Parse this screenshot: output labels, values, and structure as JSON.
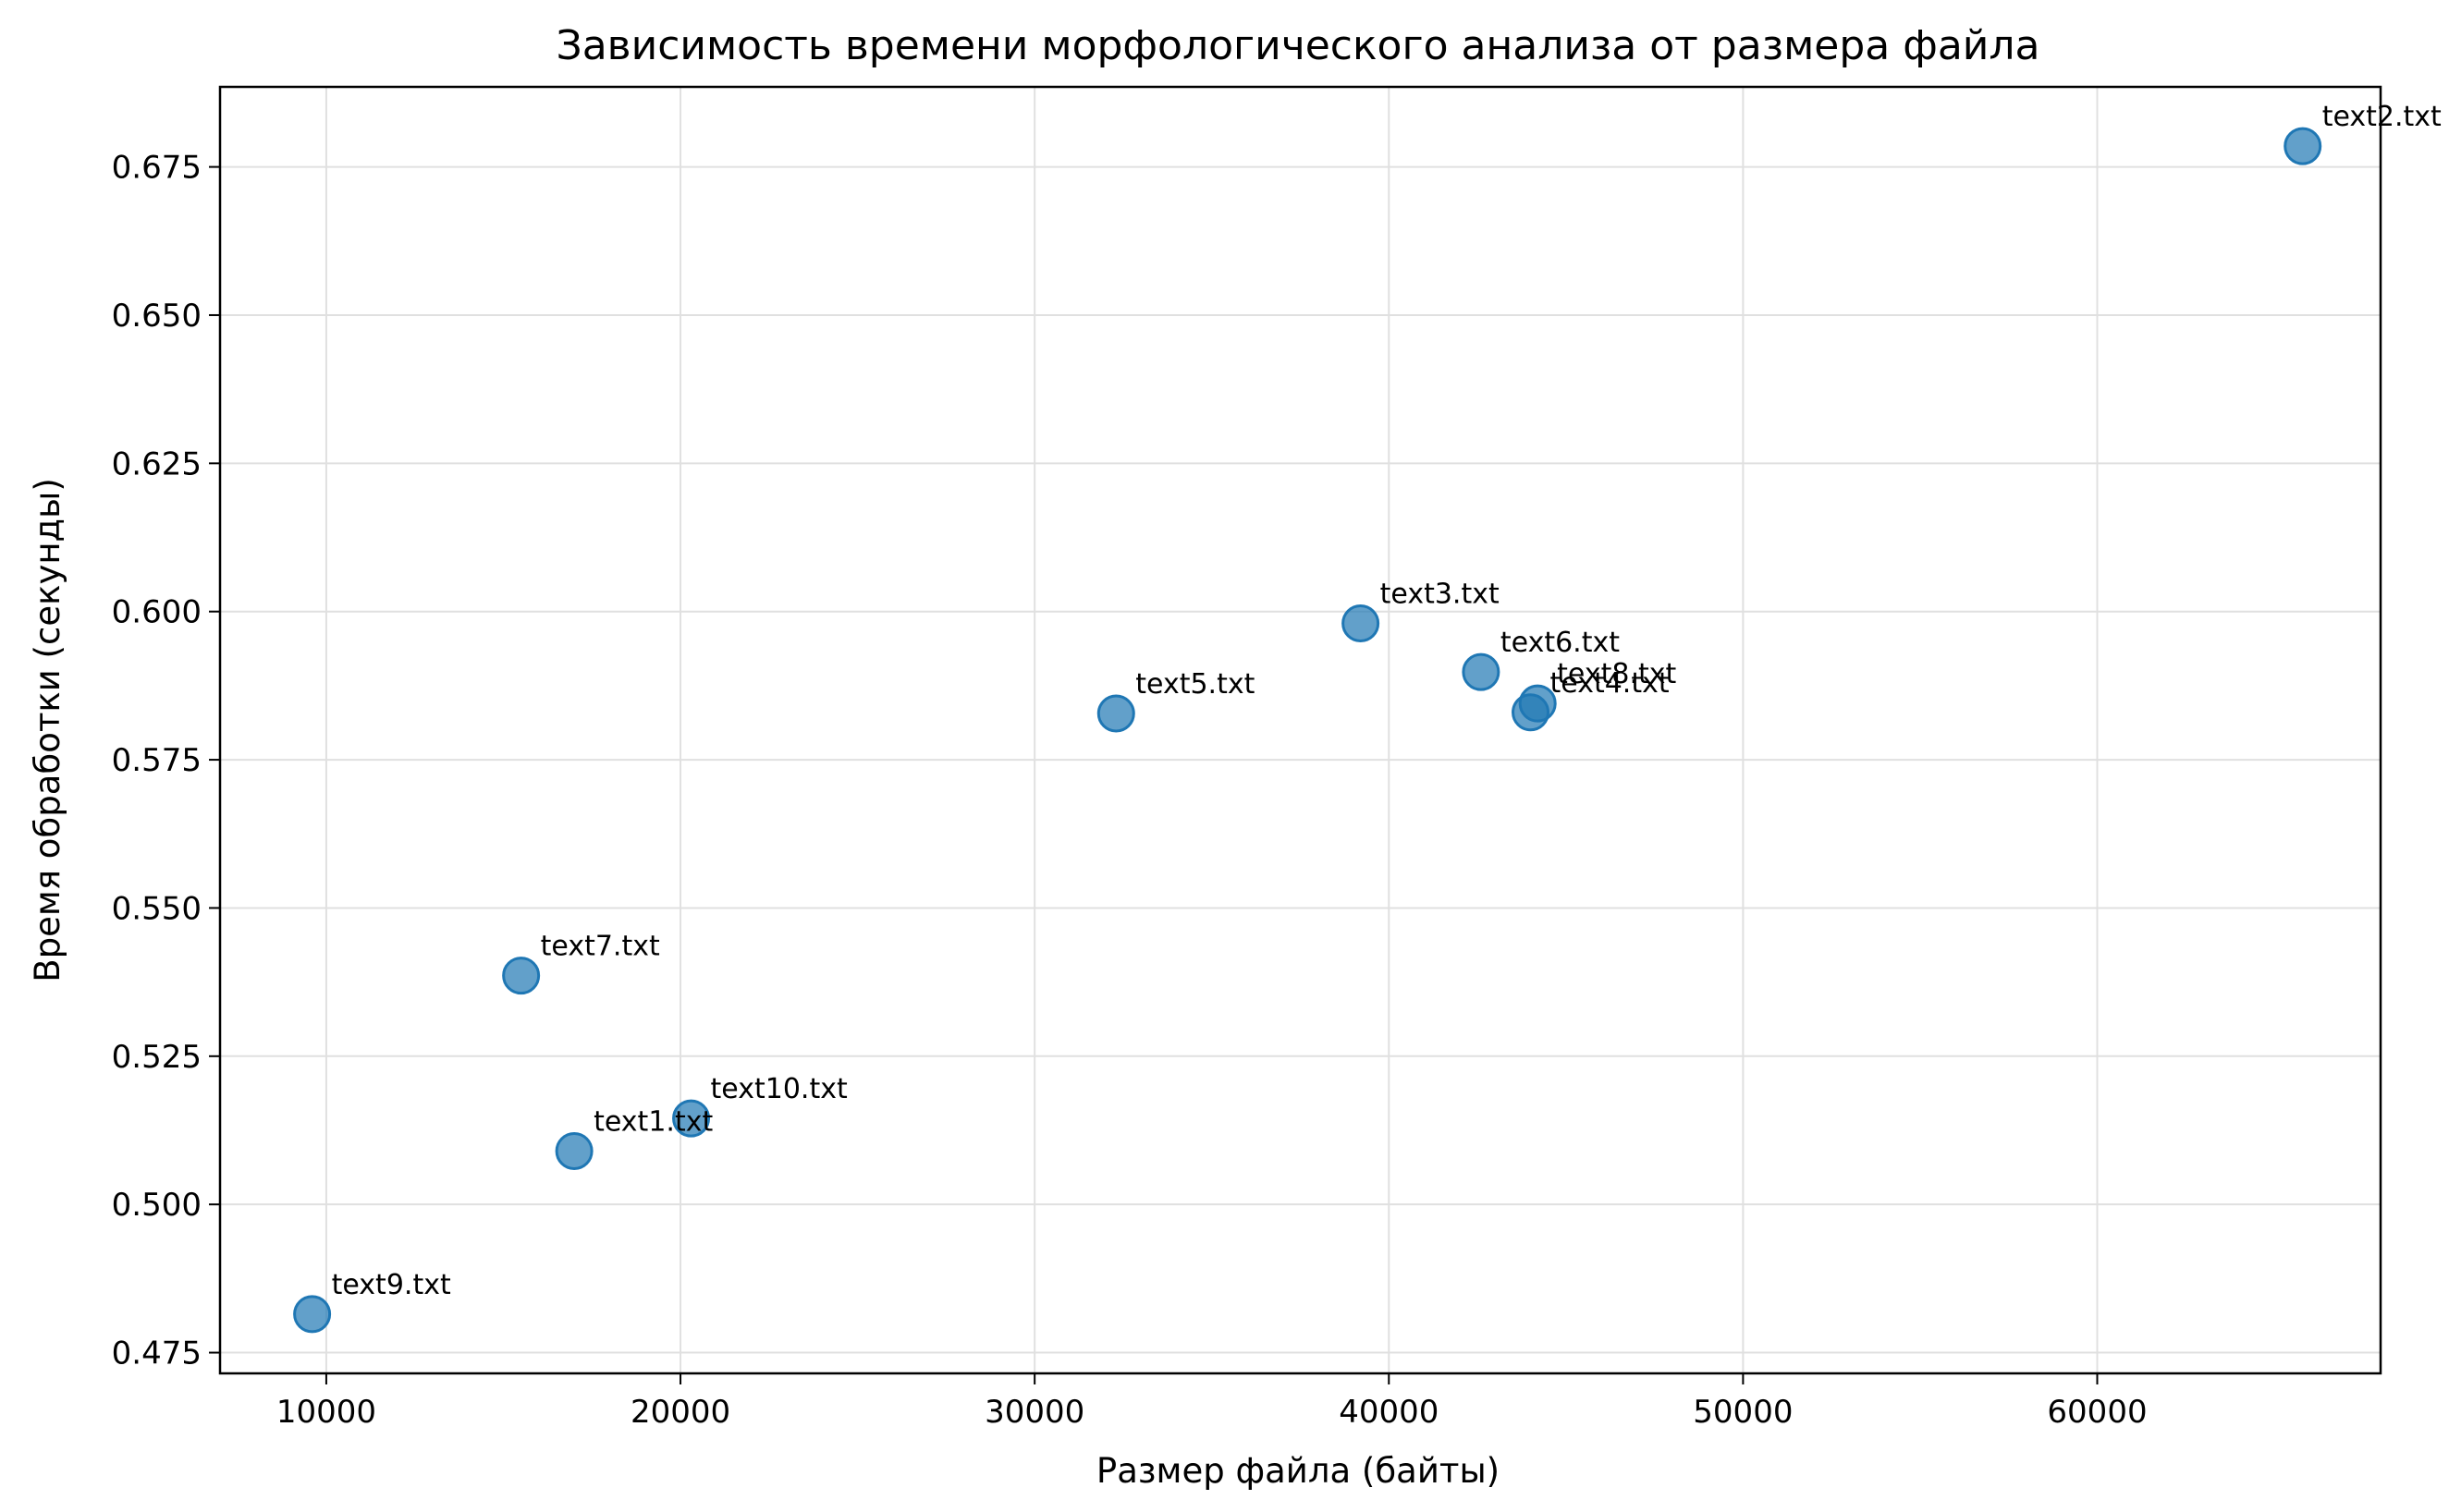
{
  "chart_data": {
    "type": "scatter",
    "title": "Зависимость времени морфологического анализа от размера файла",
    "xlabel": "Размер файла (байты)",
    "ylabel": "Время обработки (секунды)",
    "xlim": [
      7000,
      68000
    ],
    "ylim": [
      0.4715,
      0.6885
    ],
    "x_ticks": [
      10000,
      20000,
      30000,
      40000,
      50000,
      60000
    ],
    "y_ticks": [
      0.475,
      0.5,
      0.525,
      0.55,
      0.575,
      0.6,
      0.625,
      0.65,
      0.675
    ],
    "y_tick_labels": [
      "0.475",
      "0.500",
      "0.525",
      "0.550",
      "0.575",
      "0.600",
      "0.625",
      "0.650",
      "0.675"
    ],
    "grid": true,
    "color": "#1f77b4",
    "points": [
      {
        "label": "text1.txt",
        "x": 17000,
        "y": 0.509
      },
      {
        "label": "text2.txt",
        "x": 65800,
        "y": 0.6785
      },
      {
        "label": "text3.txt",
        "x": 39200,
        "y": 0.598
      },
      {
        "label": "text4.txt",
        "x": 44000,
        "y": 0.583
      },
      {
        "label": "text5.txt",
        "x": 32300,
        "y": 0.5828
      },
      {
        "label": "text6.txt",
        "x": 42600,
        "y": 0.5898
      },
      {
        "label": "text7.txt",
        "x": 15500,
        "y": 0.5386
      },
      {
        "label": "text8.txt",
        "x": 44200,
        "y": 0.5845
      },
      {
        "label": "text9.txt",
        "x": 9600,
        "y": 0.4815
      },
      {
        "label": "text10.txt",
        "x": 20300,
        "y": 0.5145
      }
    ]
  }
}
